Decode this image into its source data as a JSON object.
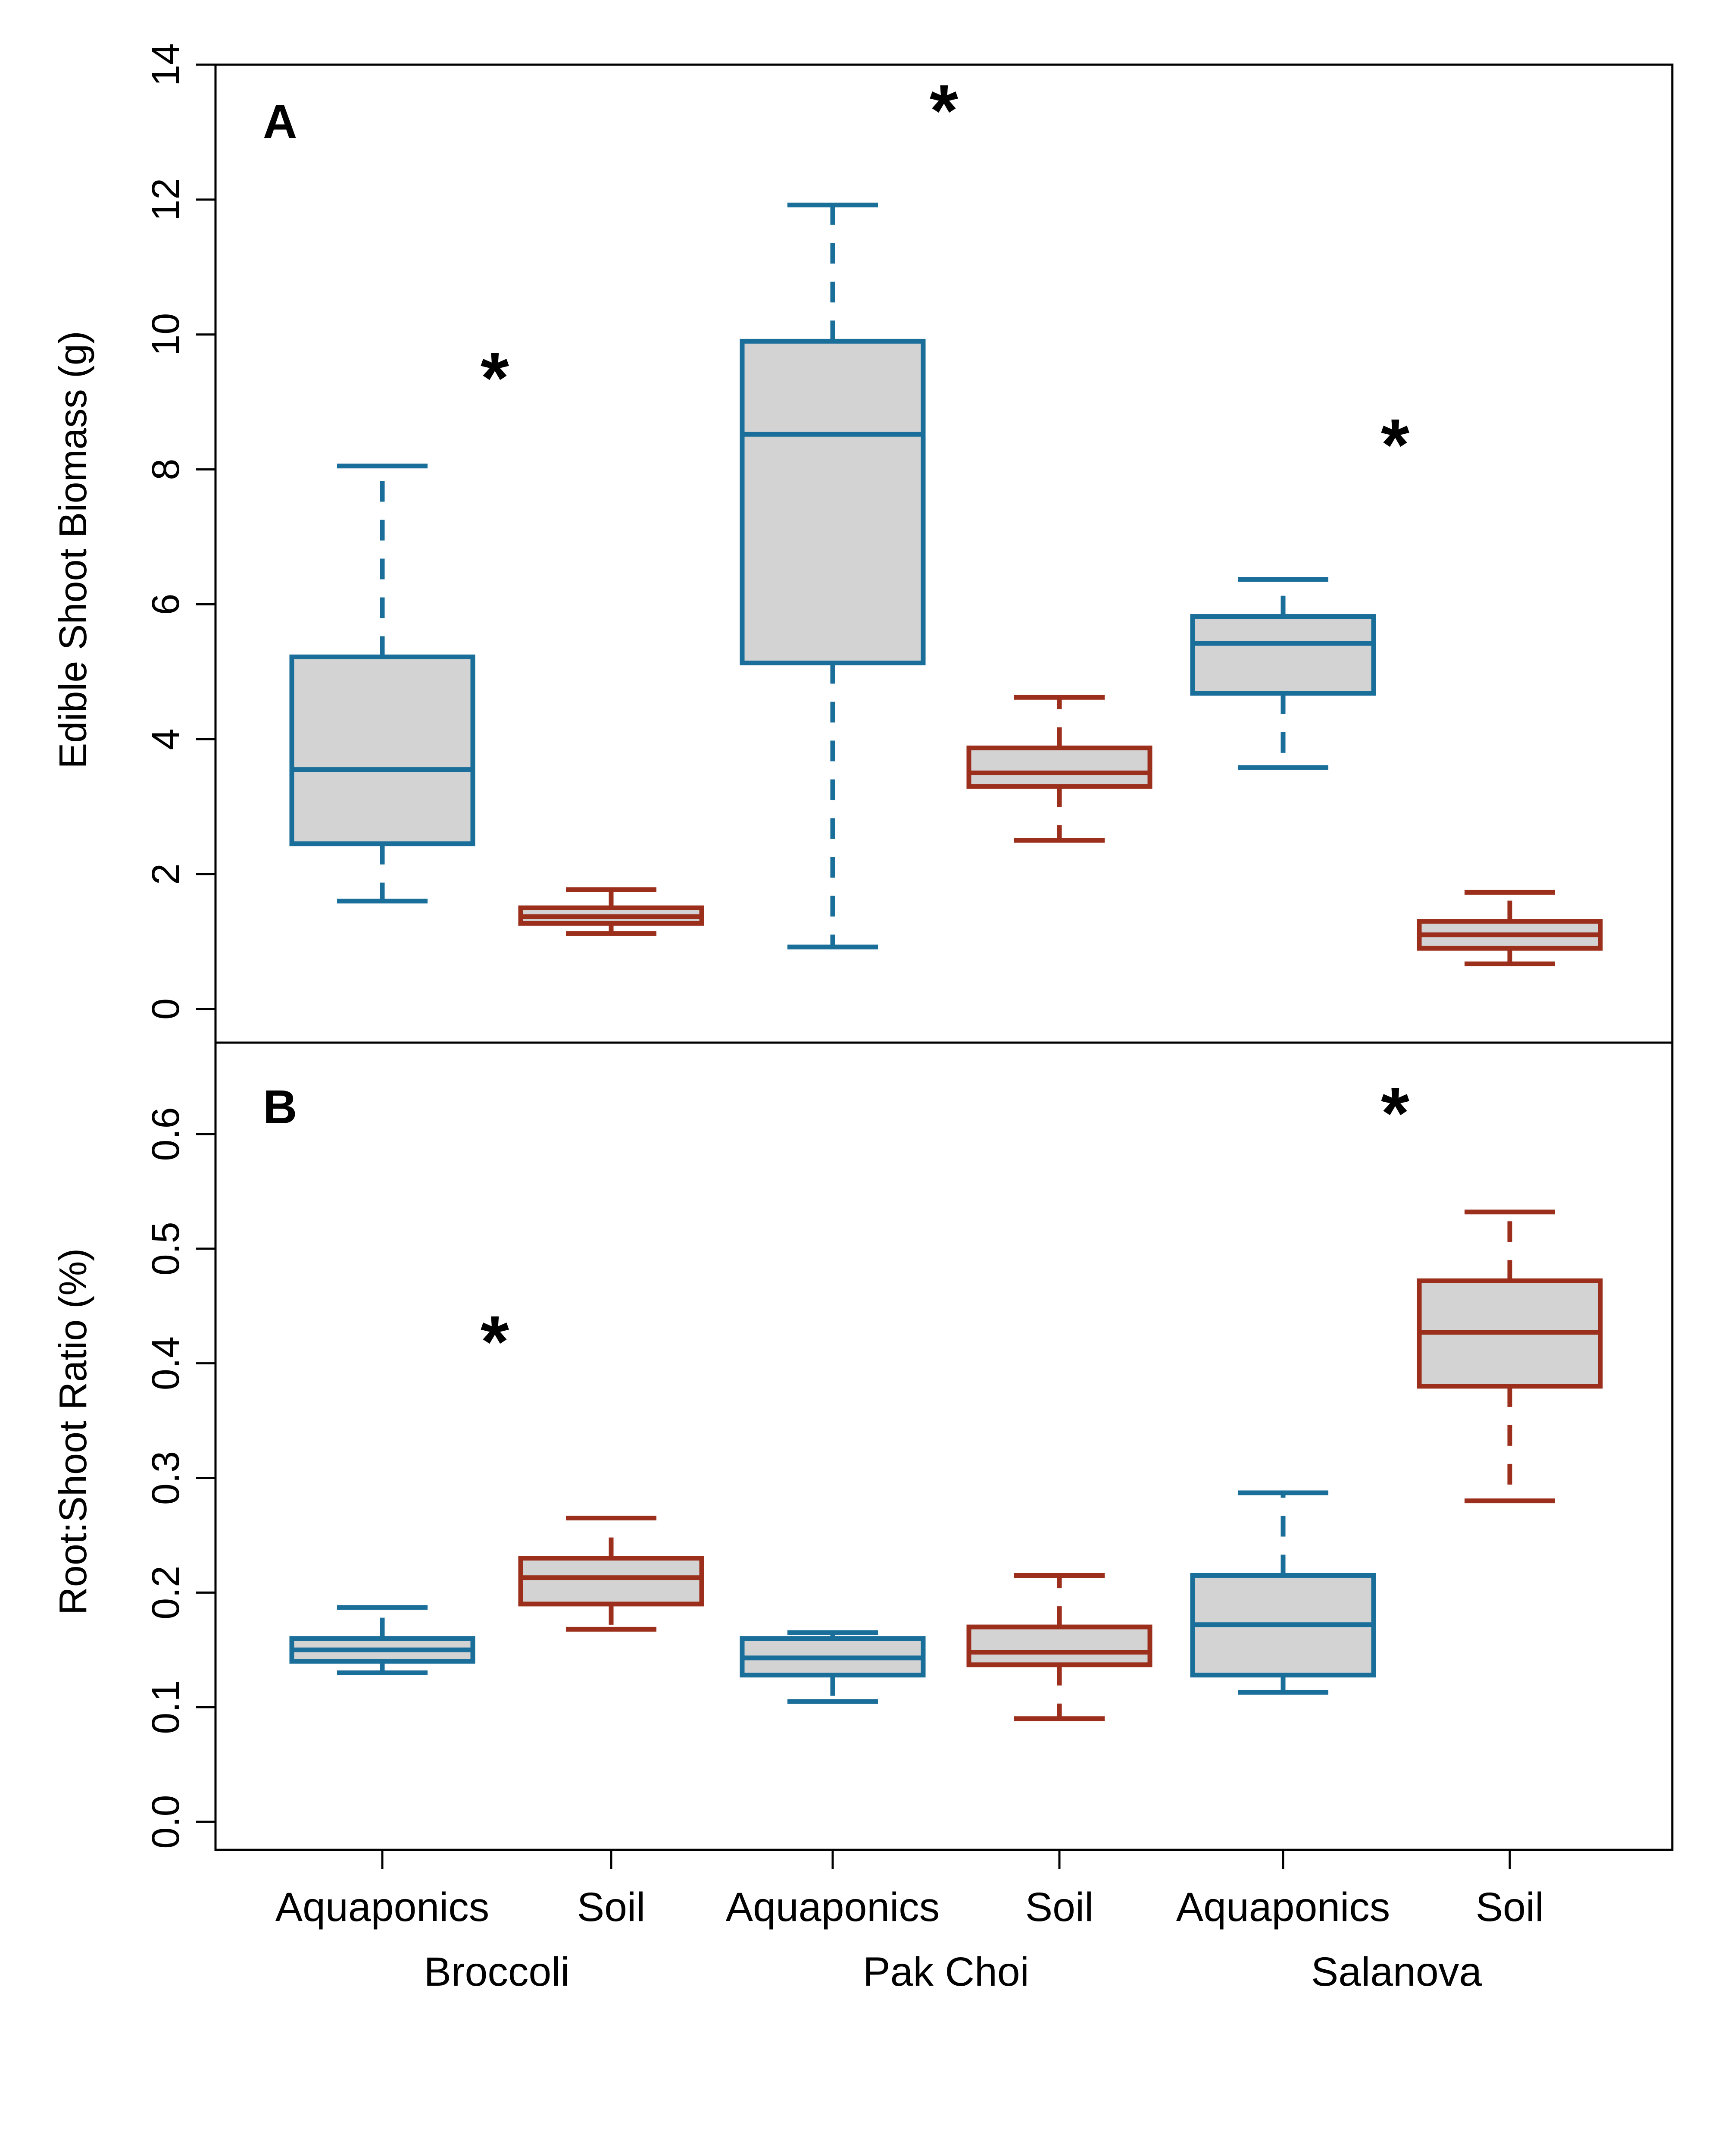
{
  "chart_data": [
    {
      "type": "boxplot",
      "panel": "A",
      "ylabel": "Edible Shoot Biomass  (g)",
      "ylim": [
        0,
        14
      ],
      "yticks": [
        "0",
        "2",
        "4",
        "6",
        "8",
        "10",
        "12",
        "14"
      ],
      "significance": [
        {
          "group": "Broccoli",
          "symbol": "*"
        },
        {
          "group": "Pak Choi",
          "symbol": "*"
        },
        {
          "group": "Salanova",
          "symbol": "*"
        }
      ],
      "boxes": [
        {
          "group": "Broccoli",
          "treatment": "Aquaponics",
          "whisker_low": 1.6,
          "q1": 2.45,
          "median": 3.55,
          "q3": 5.22,
          "whisker_high": 8.05
        },
        {
          "group": "Broccoli",
          "treatment": "Soil",
          "whisker_low": 1.12,
          "q1": 1.27,
          "median": 1.37,
          "q3": 1.5,
          "whisker_high": 1.77
        },
        {
          "group": "Pak Choi",
          "treatment": "Aquaponics",
          "whisker_low": 0.92,
          "q1": 5.13,
          "median": 8.52,
          "q3": 9.9,
          "whisker_high": 11.92
        },
        {
          "group": "Pak Choi",
          "treatment": "Soil",
          "whisker_low": 2.5,
          "q1": 3.3,
          "median": 3.5,
          "q3": 3.87,
          "whisker_high": 4.62
        },
        {
          "group": "Salanova",
          "treatment": "Aquaponics",
          "whisker_low": 3.58,
          "q1": 4.68,
          "median": 5.42,
          "q3": 5.82,
          "whisker_high": 6.37
        },
        {
          "group": "Salanova",
          "treatment": "Soil",
          "whisker_low": 0.67,
          "q1": 0.9,
          "median": 1.1,
          "q3": 1.3,
          "whisker_high": 1.73
        }
      ]
    },
    {
      "type": "boxplot",
      "panel": "B",
      "ylabel": "Root:Shoot Ratio  (%)",
      "ylim": [
        0,
        0.6
      ],
      "yticks": [
        "0.0",
        "0.1",
        "0.2",
        "0.3",
        "0.4",
        "0.5",
        "0.6"
      ],
      "significance": [
        {
          "group": "Broccoli",
          "symbol": "*"
        },
        {
          "group": "Salanova",
          "symbol": "*"
        }
      ],
      "boxes": [
        {
          "group": "Broccoli",
          "treatment": "Aquaponics",
          "whisker_low": 0.13,
          "q1": 0.14,
          "median": 0.15,
          "q3": 0.16,
          "whisker_high": 0.187
        },
        {
          "group": "Broccoli",
          "treatment": "Soil",
          "whisker_low": 0.168,
          "q1": 0.19,
          "median": 0.213,
          "q3": 0.23,
          "whisker_high": 0.265
        },
        {
          "group": "Pak Choi",
          "treatment": "Aquaponics",
          "whisker_low": 0.105,
          "q1": 0.128,
          "median": 0.143,
          "q3": 0.16,
          "whisker_high": 0.165
        },
        {
          "group": "Pak Choi",
          "treatment": "Soil",
          "whisker_low": 0.09,
          "q1": 0.137,
          "median": 0.148,
          "q3": 0.17,
          "whisker_high": 0.215
        },
        {
          "group": "Salanova",
          "treatment": "Aquaponics",
          "whisker_low": 0.113,
          "q1": 0.128,
          "median": 0.172,
          "q3": 0.215,
          "whisker_high": 0.287
        },
        {
          "group": "Salanova",
          "treatment": "Soil",
          "whisker_low": 0.28,
          "q1": 0.38,
          "median": 0.427,
          "q3": 0.472,
          "whisker_high": 0.532
        }
      ]
    }
  ],
  "x_axis": {
    "treatments": [
      "Aquaponics",
      "Soil",
      "Aquaponics",
      "Soil",
      "Aquaponics",
      "Soil"
    ],
    "groups": [
      "Broccoli",
      "Pak Choi",
      "Salanova"
    ]
  },
  "colors": {
    "aquaponics": "#1A6E9A",
    "soil": "#9B2F1C",
    "box_fill": "#D3D3D3"
  }
}
